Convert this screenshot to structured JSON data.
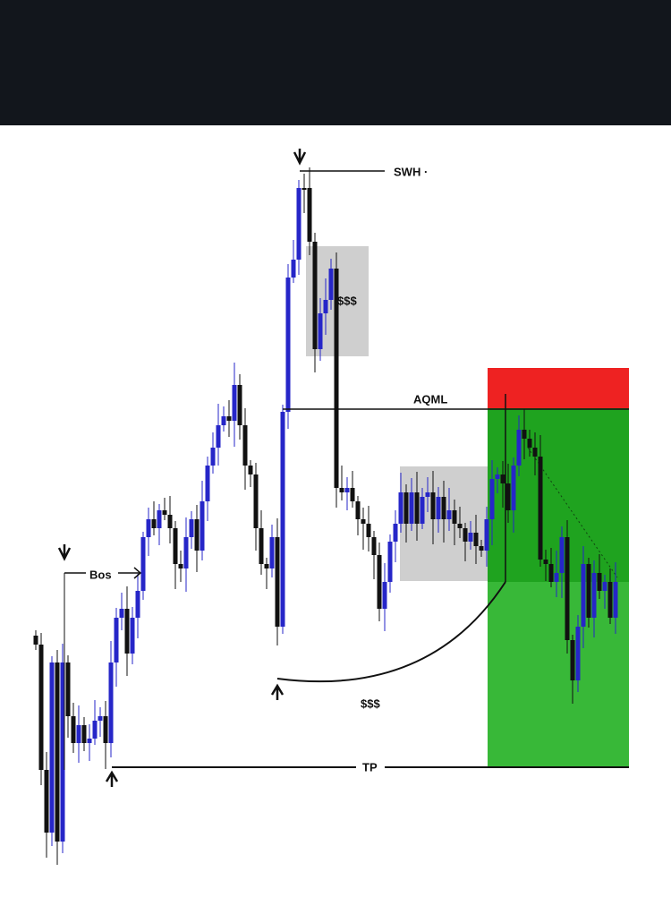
{
  "annotations": {
    "swing_high": "SWH ·",
    "liquidity_top": "$$$",
    "aqml": "AQML",
    "break_of_structure": "Bos",
    "liquidity_bottom": "$$$",
    "take_profit": "TP"
  }
}
